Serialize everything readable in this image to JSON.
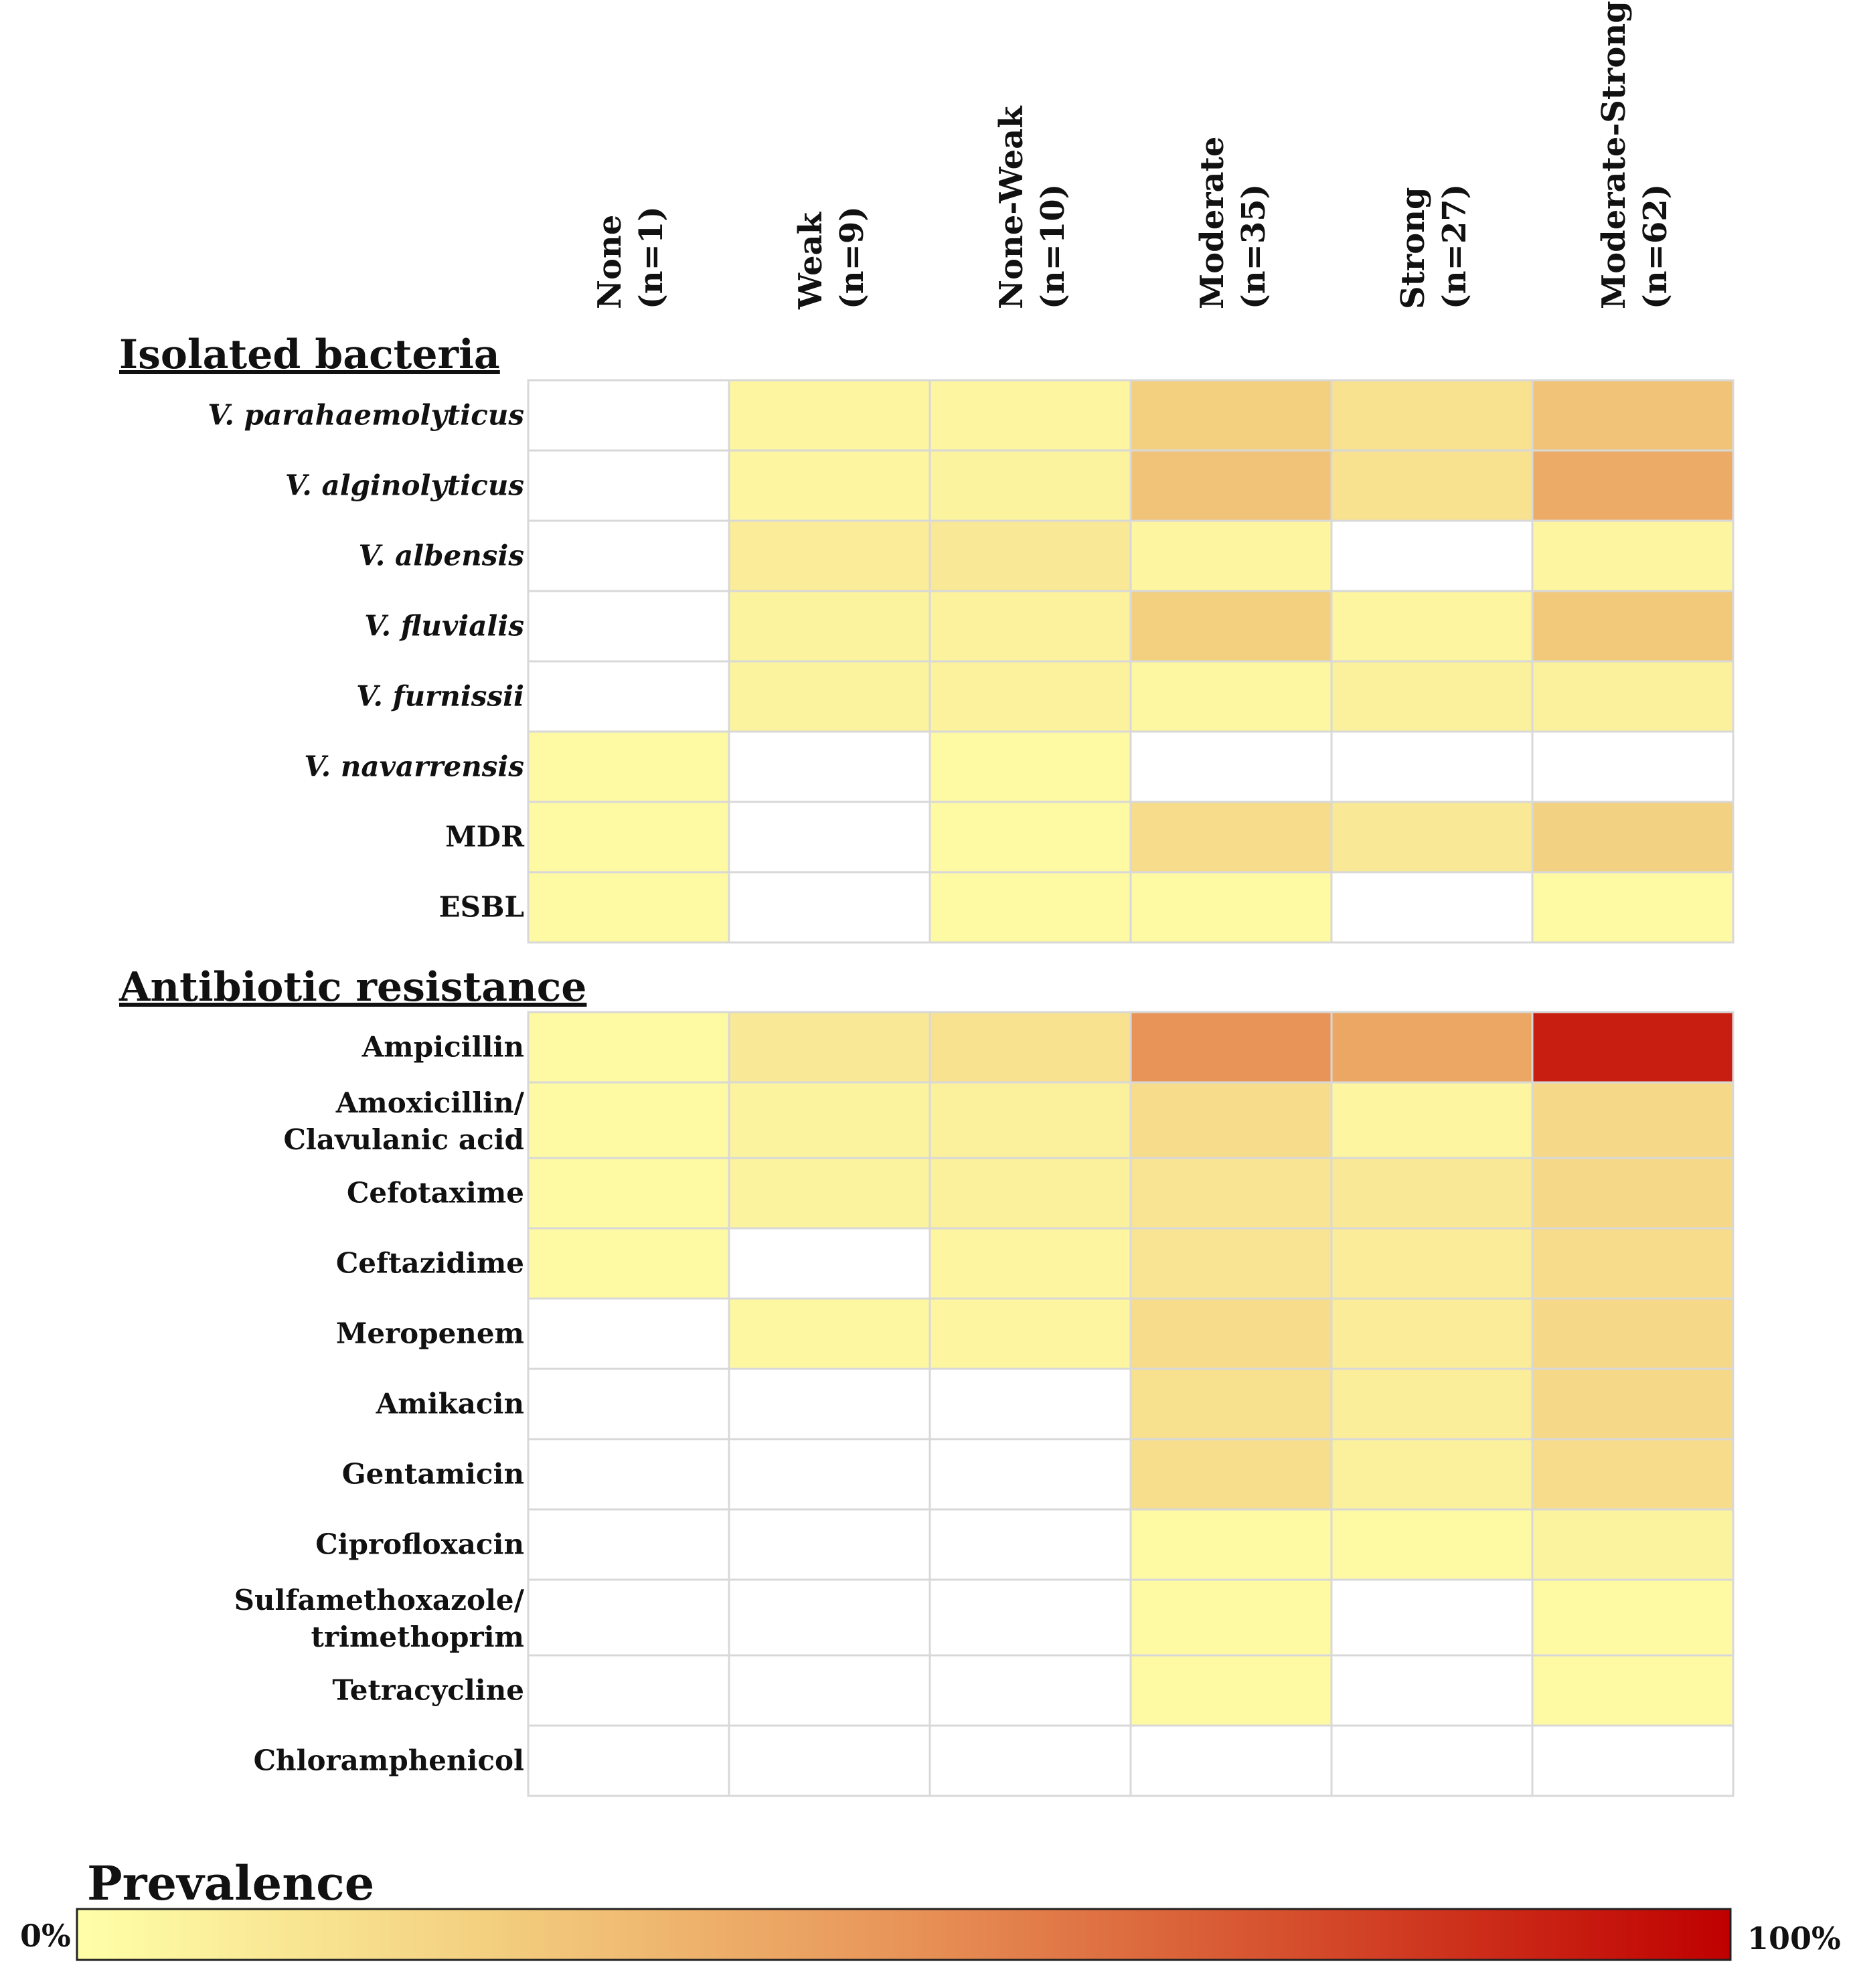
{
  "chart_data": {
    "type": "heatmap",
    "title": "",
    "columns": [
      {
        "line1": "None",
        "line2": "(n=1)"
      },
      {
        "line1": "Weak",
        "line2": "(n=9)"
      },
      {
        "line1": "None-Weak",
        "line2": "(n=10)"
      },
      {
        "line1": "Moderate",
        "line2": "(n=35)"
      },
      {
        "line1": "Strong",
        "line2": "(n=27)"
      },
      {
        "line1": "Moderate-Strong",
        "line2": "(n=62)"
      }
    ],
    "sections": [
      {
        "title": "Isolated bacteria",
        "rows": [
          {
            "lines": [
              "V. parahaemolyticus"
            ],
            "italic": true,
            "values": [
              0,
              5,
              5,
              25,
              15,
              30
            ]
          },
          {
            "lines": [
              "V. alginolyticus"
            ],
            "italic": true,
            "values": [
              0,
              5,
              6,
              30,
              15,
              40
            ]
          },
          {
            "lines": [
              "V. albensis"
            ],
            "italic": true,
            "values": [
              0,
              10,
              12,
              5,
              0,
              5
            ]
          },
          {
            "lines": [
              "V. fluvialis"
            ],
            "italic": true,
            "values": [
              0,
              6,
              7,
              25,
              5,
              28
            ]
          },
          {
            "lines": [
              "V. furnissii"
            ],
            "italic": true,
            "values": [
              0,
              6,
              7,
              4,
              8,
              8
            ]
          },
          {
            "lines": [
              "V. navarrensis"
            ],
            "italic": true,
            "values": [
              3,
              0,
              3,
              0,
              0,
              0
            ]
          },
          {
            "lines": [
              "MDR"
            ],
            "italic": false,
            "values": [
              3,
              0,
              3,
              18,
              12,
              24
            ]
          },
          {
            "lines": [
              "ESBL"
            ],
            "italic": false,
            "values": [
              3,
              0,
              3,
              3,
              0,
              3
            ]
          }
        ]
      },
      {
        "title": "Antibiotic resistance",
        "rows": [
          {
            "lines": [
              "Ampicillin"
            ],
            "italic": false,
            "values": [
              3,
              12,
              15,
              50,
              42,
              90
            ]
          },
          {
            "lines": [
              "Amoxicillin/",
              "Clavulanic acid"
            ],
            "italic": false,
            "values": [
              3,
              6,
              8,
              18,
              5,
              20
            ]
          },
          {
            "lines": [
              "Cefotaxime"
            ],
            "italic": false,
            "values": [
              3,
              6,
              8,
              14,
              12,
              20
            ]
          },
          {
            "lines": [
              "Ceftazidime"
            ],
            "italic": false,
            "values": [
              3,
              0,
              5,
              14,
              10,
              18
            ]
          },
          {
            "lines": [
              "Meropenem"
            ],
            "italic": false,
            "values": [
              0,
              4,
              5,
              18,
              10,
              20
            ]
          },
          {
            "lines": [
              "Amikacin"
            ],
            "italic": false,
            "values": [
              0,
              0,
              0,
              16,
              9,
              20
            ]
          },
          {
            "lines": [
              "Gentamicin"
            ],
            "italic": false,
            "values": [
              0,
              0,
              0,
              17,
              8,
              18
            ]
          },
          {
            "lines": [
              "Ciprofloxacin"
            ],
            "italic": false,
            "values": [
              0,
              0,
              0,
              3,
              3,
              6
            ]
          },
          {
            "lines": [
              "Sulfamethoxazole/",
              "trimethoprim"
            ],
            "italic": false,
            "values": [
              0,
              0,
              0,
              3,
              0,
              3
            ]
          },
          {
            "lines": [
              "Tetracycline"
            ],
            "italic": false,
            "values": [
              0,
              0,
              0,
              3,
              0,
              3
            ]
          },
          {
            "lines": [
              "Chloramphenicol"
            ],
            "italic": false,
            "values": [
              0,
              0,
              0,
              0,
              0,
              0
            ]
          }
        ]
      }
    ],
    "colorbar": {
      "title": "Prevalence",
      "min_label": "0%",
      "max_label": "100%",
      "range": [
        0,
        100
      ],
      "colors": [
        "#ffffa8",
        "#f3cf80",
        "#e89458",
        "#d44a2a",
        "#bf0000"
      ]
    }
  }
}
